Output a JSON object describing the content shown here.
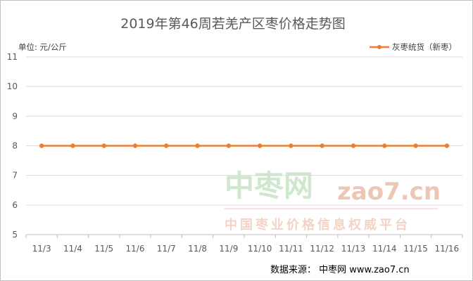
{
  "chart_data": {
    "type": "line",
    "title": "2019年第46周若羌产区枣价格走势图",
    "unit_label": "单位: 元/公斤",
    "categories": [
      "11/3",
      "11/4",
      "11/5",
      "11/6",
      "11/7",
      "11/8",
      "11/9",
      "11/10",
      "11/11",
      "11/12",
      "11/13",
      "11/14",
      "11/15",
      "11/16"
    ],
    "series": [
      {
        "name": "灰枣统货（新枣）",
        "values": [
          8,
          8,
          8,
          8,
          8,
          8,
          8,
          8,
          8,
          8,
          8,
          8,
          8,
          8
        ],
        "color": "#ed7d31"
      }
    ],
    "ylim": [
      5,
      11
    ],
    "yticks": [
      5,
      6,
      7,
      8,
      9,
      10,
      11
    ],
    "grid": true,
    "legend_position": "top-right",
    "source": "数据来源：  中枣网 www.zao7.cn",
    "watermark": {
      "logo_text": "中枣网",
      "url_text": "zao7.cn",
      "tagline": "中国枣业价格信息权威平台"
    }
  },
  "colors": {
    "gridline": "#d9d9d9",
    "axis": "#bfbfbf",
    "series": "#ed7d31"
  }
}
